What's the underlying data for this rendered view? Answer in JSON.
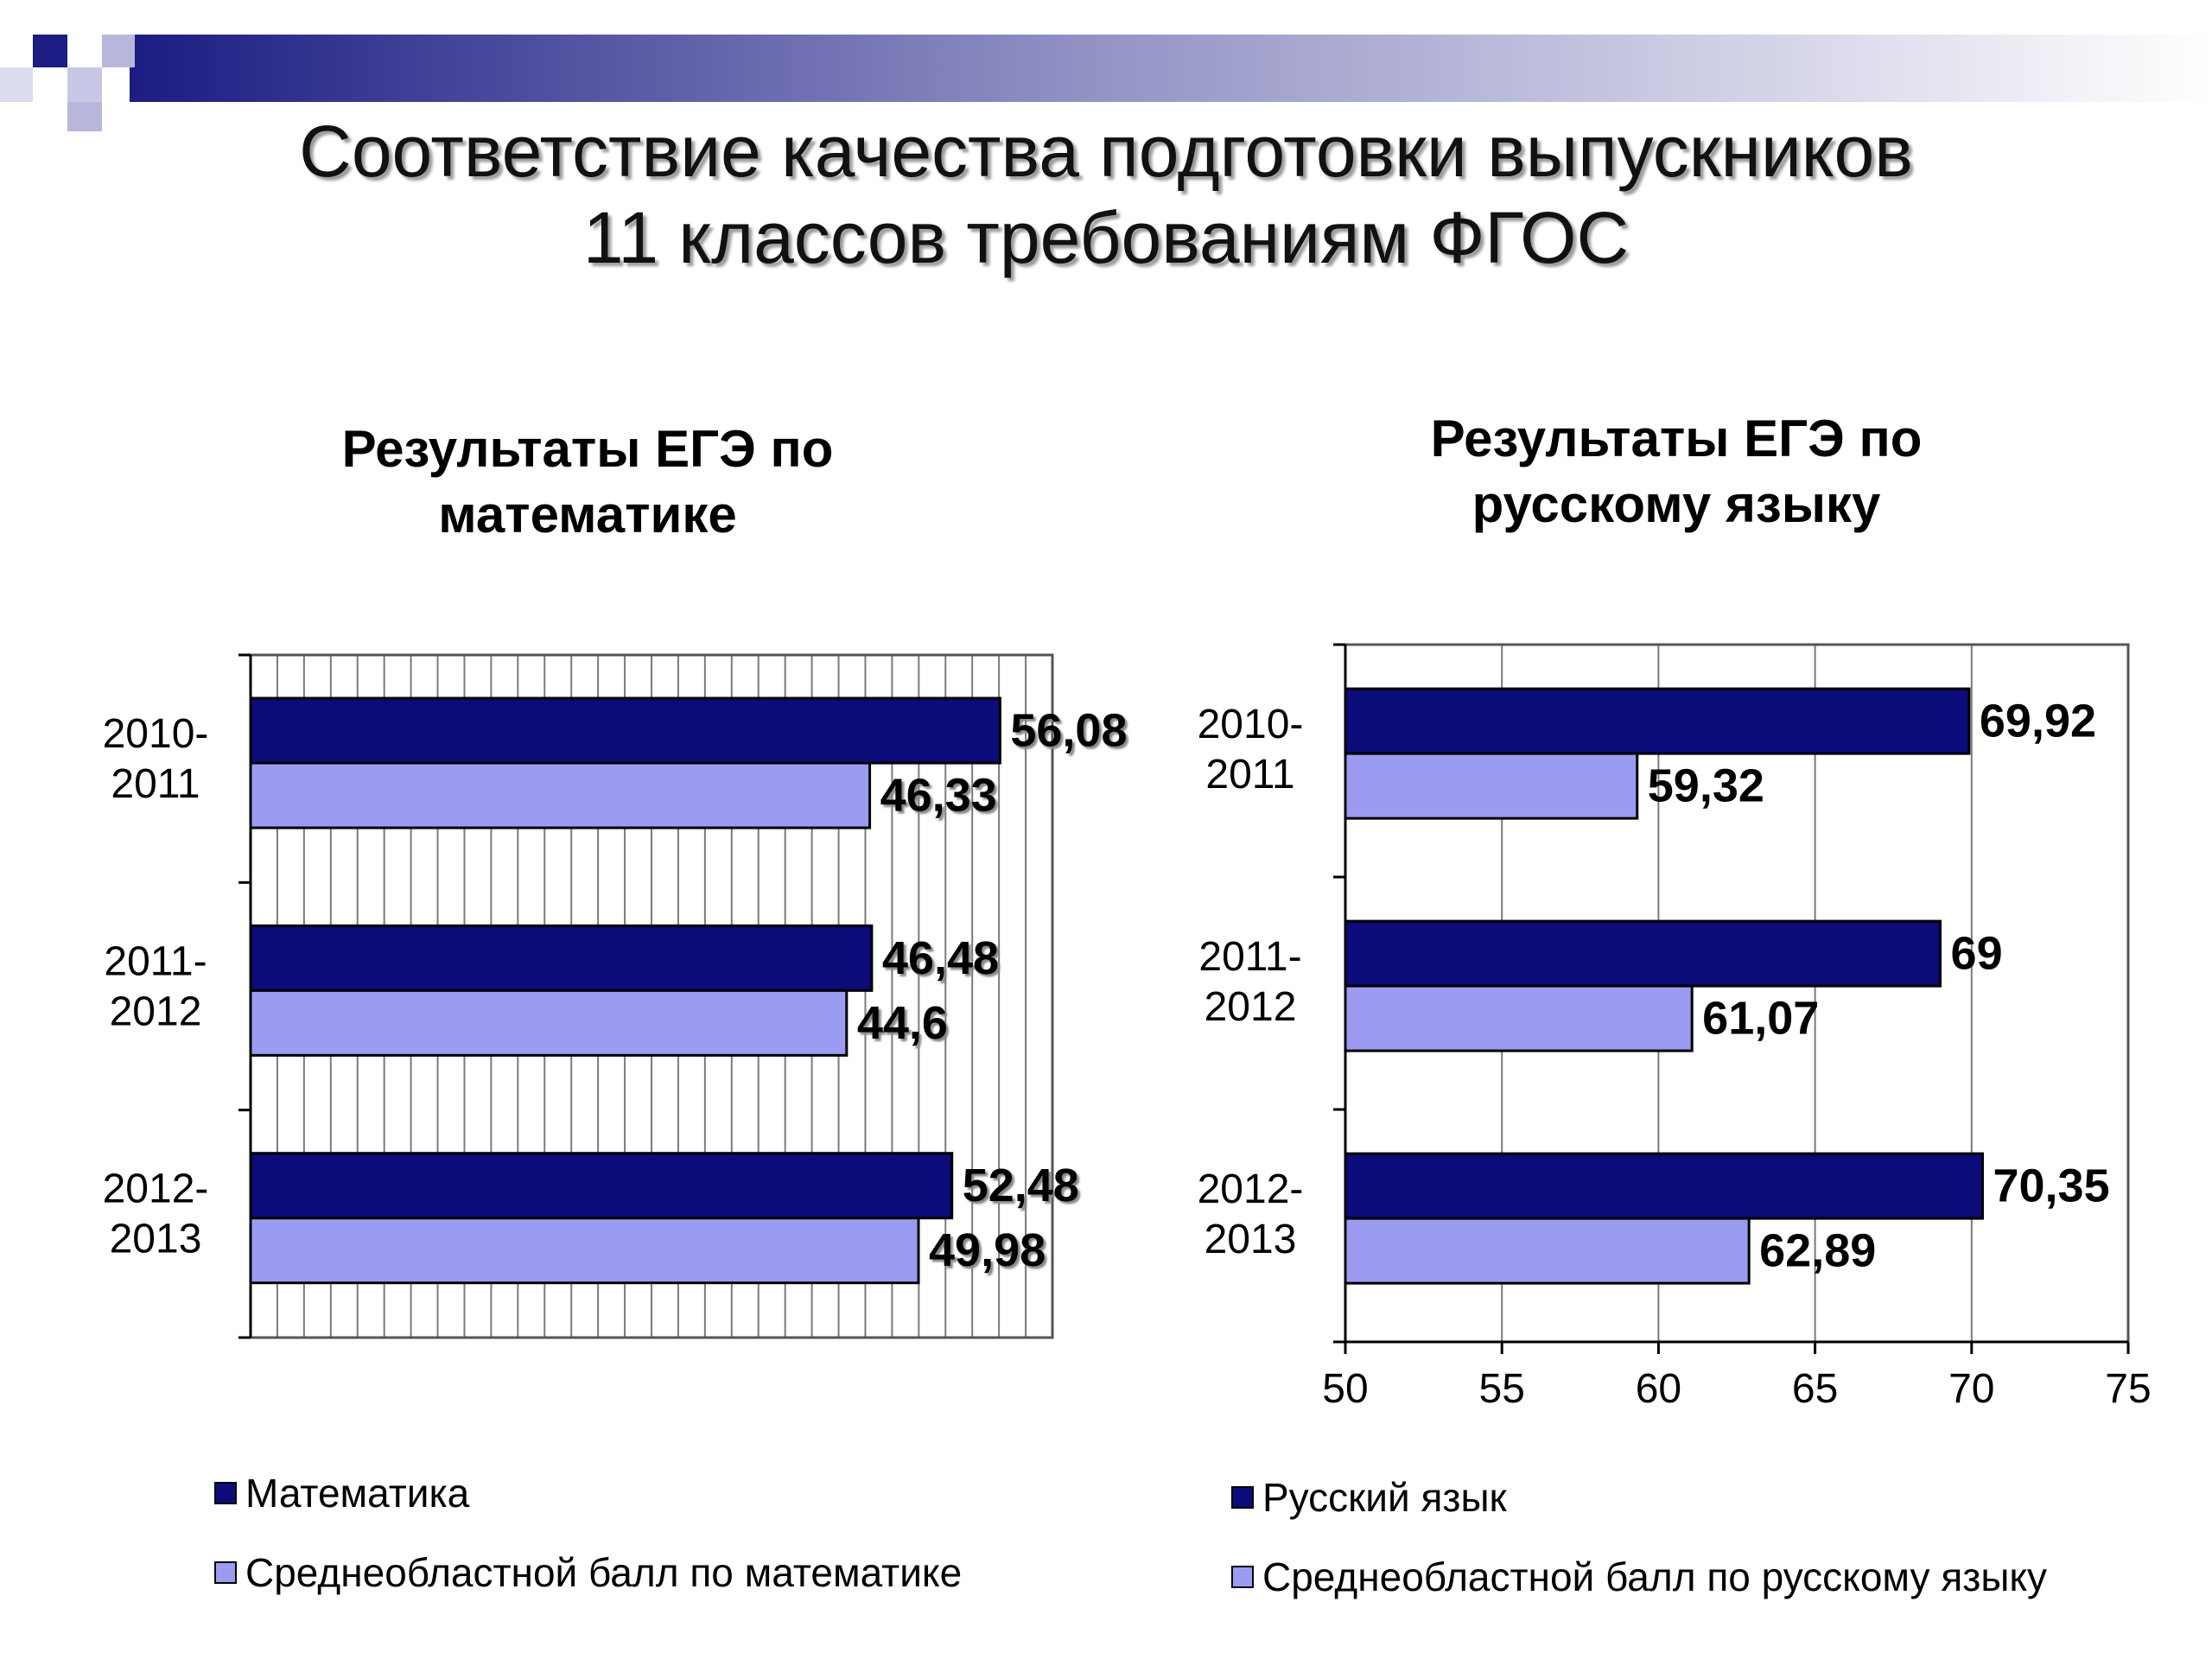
{
  "slide": {
    "title_line1": "Соответствие качества подготовки выпускников",
    "title_line2": "11 классов требованиям ФГОС"
  },
  "colors": {
    "school": "#0b0b7a",
    "regional": "#9b9bf2",
    "corner_dark": "#1c1c83",
    "corner_light": "#b7b7dc"
  },
  "chart_data": [
    {
      "type": "bar",
      "orientation": "horizontal",
      "title_line1": "Результаты ЕГЭ по",
      "title_line2": "математике",
      "categories": [
        {
          "line1": "2010-",
          "line2": "2011"
        },
        {
          "line1": "2011-",
          "line2": "2012"
        },
        {
          "line1": "2012-",
          "line2": "2013"
        }
      ],
      "series": [
        {
          "name": "Математика",
          "values": [
            56.08,
            46.48,
            52.48
          ],
          "labels": [
            "56,08",
            "46,48",
            "52,48"
          ]
        },
        {
          "name": "Среднеобластной балл по математике",
          "values": [
            46.33,
            44.6,
            49.98
          ],
          "labels": [
            "46,33",
            "44,6",
            "49,98"
          ]
        }
      ],
      "xlim": [
        0,
        60
      ],
      "x_axis_labels_visible": false,
      "grid": true,
      "legend_position": "bottom"
    },
    {
      "type": "bar",
      "orientation": "horizontal",
      "title_line1": "Результаты ЕГЭ по",
      "title_line2": "русскому языку",
      "categories": [
        {
          "line1": "2010-",
          "line2": "2011"
        },
        {
          "line1": "2011-",
          "line2": "2012"
        },
        {
          "line1": "2012-",
          "line2": "2013"
        }
      ],
      "series": [
        {
          "name": "Русский язык",
          "values": [
            69.92,
            69,
            70.35
          ],
          "labels": [
            "69,92",
            "69",
            "70,35"
          ]
        },
        {
          "name": "Среднеобластной балл по русскому языку",
          "values": [
            59.32,
            61.07,
            62.89
          ],
          "labels": [
            "59,32",
            "61,07",
            "62,89"
          ]
        }
      ],
      "xlim": [
        50,
        75
      ],
      "xticks": [
        "50",
        "55",
        "60",
        "65",
        "70",
        "75"
      ],
      "grid": true,
      "legend_position": "bottom"
    }
  ]
}
